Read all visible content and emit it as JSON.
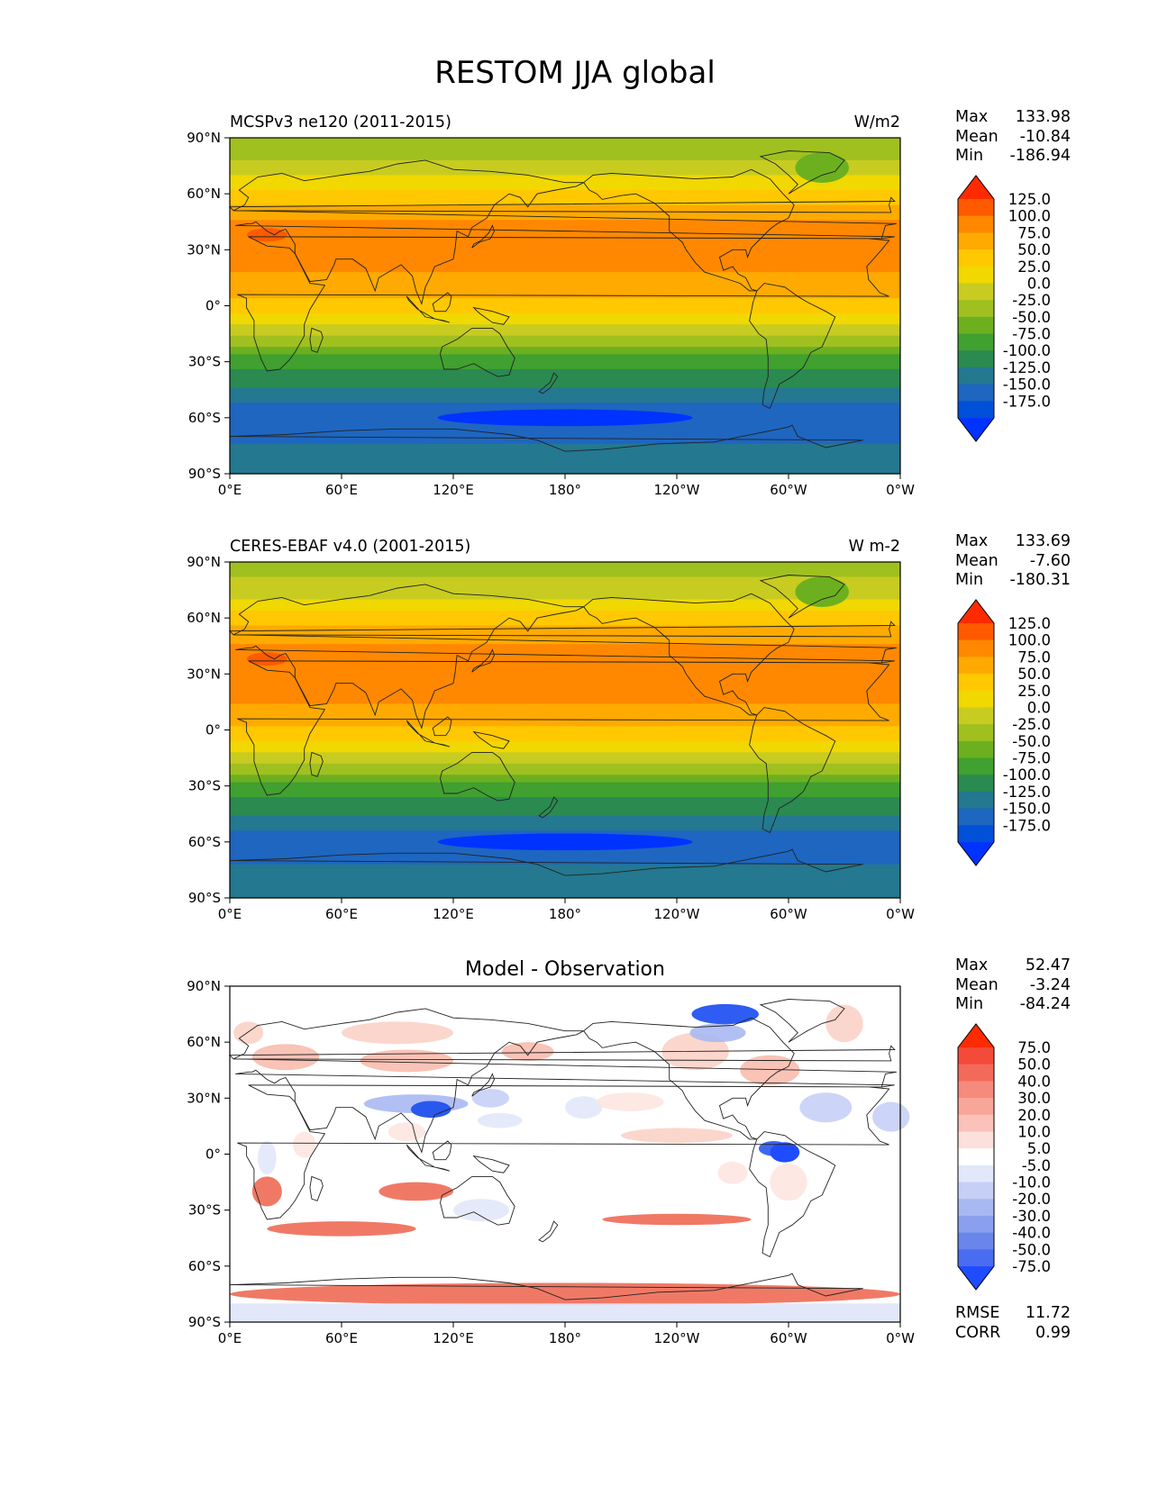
{
  "title": "RESTOM JJA global",
  "lon_ticks": [
    "0°E",
    "60°E",
    "120°E",
    "180°",
    "120°W",
    "60°W",
    "0°W"
  ],
  "lat_ticks": [
    "90°N",
    "60°N",
    "30°N",
    "0°",
    "30°S",
    "60°S",
    "90°S"
  ],
  "chart_data": [
    {
      "type": "heatmap",
      "left_title": "MCSPv3 ne120 (2011-2015)",
      "center_title": "",
      "units": "W/m2",
      "stats": {
        "max": "133.98",
        "mean": "-10.84",
        "min": "-186.94"
      },
      "colorbar": {
        "labels": [
          "125.0",
          "100.0",
          "75.0",
          "50.0",
          "25.0",
          "0.0",
          "-25.0",
          "-50.0",
          "-75.0",
          "-100.0",
          "-125.0",
          "-150.0",
          "-175.0"
        ],
        "colors": [
          "#ff2a00",
          "#ff5a00",
          "#ff8800",
          "#ffaa00",
          "#ffc800",
          "#f0d800",
          "#c8cc20",
          "#a0c020",
          "#6cb020",
          "#40a030",
          "#2a8a50",
          "#247890",
          "#1e66c0",
          "#0050d8",
          "#0033ff"
        ]
      },
      "xlim": [
        0,
        360
      ],
      "ylim": [
        -90,
        90
      ],
      "lat_profile": [
        {
          "lat": 90,
          "value": -40
        },
        {
          "lat": 75,
          "value": -20
        },
        {
          "lat": 60,
          "value": 30
        },
        {
          "lat": 45,
          "value": 75
        },
        {
          "lat": 30,
          "value": 90
        },
        {
          "lat": 15,
          "value": 70
        },
        {
          "lat": 0,
          "value": 40
        },
        {
          "lat": -15,
          "value": -20
        },
        {
          "lat": -30,
          "value": -90
        },
        {
          "lat": -45,
          "value": -130
        },
        {
          "lat": -60,
          "value": -170
        },
        {
          "lat": -75,
          "value": -150
        },
        {
          "lat": -90,
          "value": -120
        }
      ]
    },
    {
      "type": "heatmap",
      "left_title": "CERES-EBAF v4.0 (2001-2015)",
      "center_title": "",
      "units": "W m-2",
      "stats": {
        "max": "133.69",
        "mean": "-7.60",
        "min": "-180.31"
      },
      "colorbar": {
        "labels": [
          "125.0",
          "100.0",
          "75.0",
          "50.0",
          "25.0",
          "0.0",
          "-25.0",
          "-50.0",
          "-75.0",
          "-100.0",
          "-125.0",
          "-150.0",
          "-175.0"
        ],
        "colors": [
          "#ff2a00",
          "#ff5a00",
          "#ff8800",
          "#ffaa00",
          "#ffc800",
          "#f0d800",
          "#c8cc20",
          "#a0c020",
          "#6cb020",
          "#40a030",
          "#2a8a50",
          "#247890",
          "#1e66c0",
          "#0050d8",
          "#0033ff"
        ]
      },
      "xlim": [
        0,
        360
      ],
      "ylim": [
        -90,
        90
      ],
      "lat_profile": [
        {
          "lat": 90,
          "value": -40
        },
        {
          "lat": 75,
          "value": -15
        },
        {
          "lat": 60,
          "value": 35
        },
        {
          "lat": 45,
          "value": 80
        },
        {
          "lat": 30,
          "value": 95
        },
        {
          "lat": 15,
          "value": 75
        },
        {
          "lat": 0,
          "value": 45
        },
        {
          "lat": -15,
          "value": -10
        },
        {
          "lat": -30,
          "value": -85
        },
        {
          "lat": -45,
          "value": -125
        },
        {
          "lat": -60,
          "value": -165
        },
        {
          "lat": -75,
          "value": -145
        },
        {
          "lat": -90,
          "value": -110
        }
      ]
    },
    {
      "type": "heatmap",
      "left_title": "",
      "center_title": "Model - Observation",
      "units": "",
      "stats": {
        "max": "52.47",
        "mean": "-3.24",
        "min": "-84.24"
      },
      "colorbar": {
        "labels": [
          "75.0",
          "50.0",
          "40.0",
          "30.0",
          "20.0",
          "10.0",
          "5.0",
          "-5.0",
          "-10.0",
          "-20.0",
          "-30.0",
          "-40.0",
          "-50.0",
          "-75.0"
        ],
        "colors": [
          "#ff2a00",
          "#f44a3a",
          "#f46a5a",
          "#f68a7c",
          "#f8a698",
          "#fac2b8",
          "#fce0da",
          "#ffffff",
          "#e2e8fa",
          "#c6d0f6",
          "#a8b8f2",
          "#8aa0ee",
          "#6a86ea",
          "#4a6cf0",
          "#1f4cff"
        ]
      },
      "xlim": [
        0,
        360
      ],
      "ylim": [
        -90,
        90
      ],
      "rmse": "11.72",
      "corr": "0.99"
    }
  ]
}
